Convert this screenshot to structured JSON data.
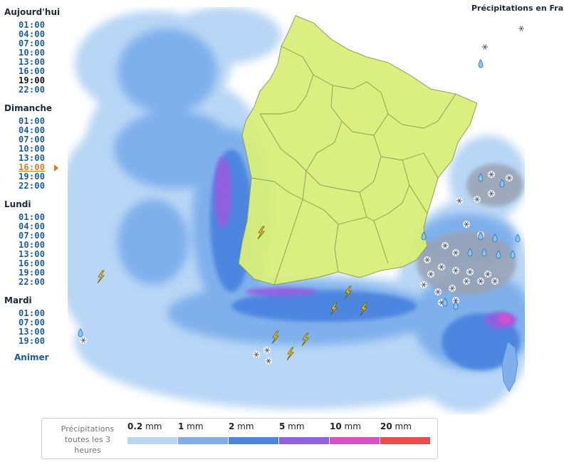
{
  "map_title": "Précipitations en France",
  "days": [
    {
      "label": "Aujourd'hui",
      "times": [
        {
          "t": "01:00"
        },
        {
          "t": "04:00"
        },
        {
          "t": "07:00"
        },
        {
          "t": "10:00"
        },
        {
          "t": "13:00"
        },
        {
          "t": "16:00"
        },
        {
          "t": "19:00",
          "state": "now"
        },
        {
          "t": "22:00"
        }
      ]
    },
    {
      "label": "Dimanche",
      "times": [
        {
          "t": "01:00"
        },
        {
          "t": "04:00"
        },
        {
          "t": "07:00"
        },
        {
          "t": "10:00"
        },
        {
          "t": "13:00"
        },
        {
          "t": "16:00",
          "state": "selected"
        },
        {
          "t": "19:00"
        },
        {
          "t": "22:00"
        }
      ]
    },
    {
      "label": "Lundi",
      "times": [
        {
          "t": "01:00"
        },
        {
          "t": "04:00"
        },
        {
          "t": "07:00"
        },
        {
          "t": "10:00"
        },
        {
          "t": "13:00"
        },
        {
          "t": "16:00"
        },
        {
          "t": "19:00"
        },
        {
          "t": "22:00"
        }
      ]
    },
    {
      "label": "Mardi",
      "times": [
        {
          "t": "01:00"
        },
        {
          "t": "07:00"
        },
        {
          "t": "13:00"
        },
        {
          "t": "19:00"
        }
      ]
    }
  ],
  "animate_label": "Animer",
  "legend": {
    "label": "Précipitations toutes les 3 heures",
    "unit": "mm",
    "classes": [
      {
        "value": "0.2",
        "color": "#b8d6f5"
      },
      {
        "value": "1",
        "color": "#7fb0ec"
      },
      {
        "value": "2",
        "color": "#4d86e0"
      },
      {
        "value": "5",
        "color": "#9161e0"
      },
      {
        "value": "10",
        "color": "#d84fc9"
      },
      {
        "value": "20",
        "color": "#f04c4c"
      }
    ]
  },
  "colors": {
    "land": "#d9ef7a",
    "border": "#8a9a55",
    "snow_zone": "#9aa3b3",
    "time_link": "#1c5c99",
    "time_selected": "#e07a1f"
  },
  "icons": [
    "lightning-icon",
    "snowflake-icon",
    "raindrop-icon"
  ]
}
